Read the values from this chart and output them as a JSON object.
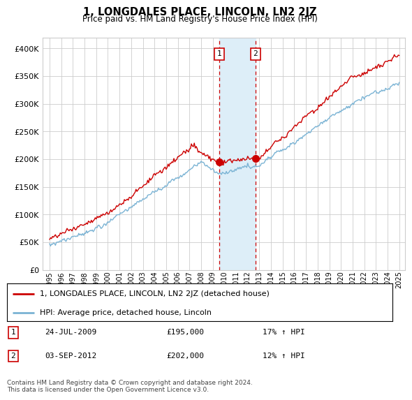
{
  "title": "1, LONGDALES PLACE, LINCOLN, LN2 2JZ",
  "subtitle": "Price paid vs. HM Land Registry's House Price Index (HPI)",
  "legend_line1": "1, LONGDALES PLACE, LINCOLN, LN2 2JZ (detached house)",
  "legend_line2": "HPI: Average price, detached house, Lincoln",
  "table": [
    {
      "num": "1",
      "date": "24-JUL-2009",
      "price": "£195,000",
      "hpi": "17% ↑ HPI"
    },
    {
      "num": "2",
      "date": "03-SEP-2012",
      "price": "£202,000",
      "hpi": "12% ↑ HPI"
    }
  ],
  "footnote": "Contains HM Land Registry data © Crown copyright and database right 2024.\nThis data is licensed under the Open Government Licence v3.0.",
  "sale1_year": 2009.56,
  "sale2_year": 2012.67,
  "sale1_price": 195000,
  "sale2_price": 202000,
  "hpi_color": "#7ab3d4",
  "price_color": "#cc0000",
  "highlight_color": "#ddeef8",
  "sale_dot_color": "#cc0000",
  "vline_color": "#cc0000",
  "ylim": [
    0,
    420000
  ],
  "yticks": [
    0,
    50000,
    100000,
    150000,
    200000,
    250000,
    300000,
    350000,
    400000
  ],
  "year_start": 1995,
  "year_end": 2025
}
